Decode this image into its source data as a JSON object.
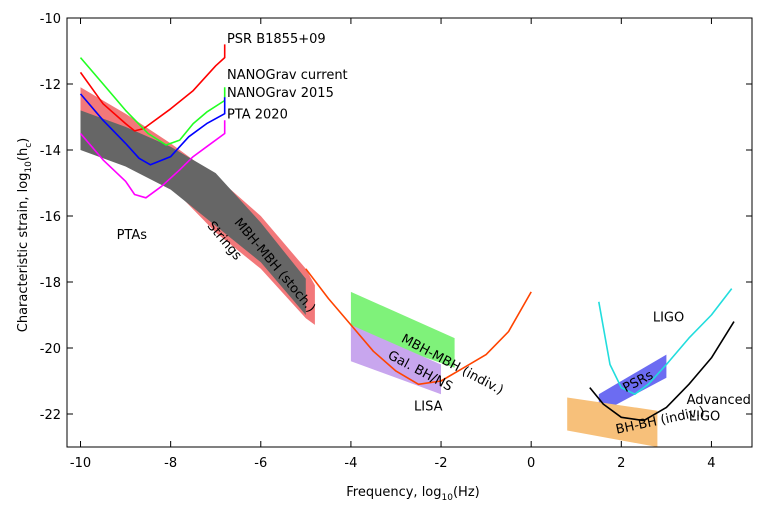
{
  "chart_data": {
    "type": "line",
    "title": "",
    "xlabel": "Frequency, log",
    "xlabel_sub": "10",
    "xlabel_tail": "(Hz)",
    "ylabel": "Characteristic strain, log",
    "ylabel_sub": "10",
    "ylabel_tail": "(h",
    "ylabel_sub2": "c",
    "ylabel_end": ")",
    "xlim": [
      -10.3,
      4.9
    ],
    "ylim": [
      -23.0,
      -10.0
    ],
    "xticks": [
      -10,
      -8,
      -6,
      -4,
      -2,
      0,
      2,
      4
    ],
    "yticks": [
      -10,
      -12,
      -14,
      -16,
      -18,
      -20,
      -22
    ],
    "regions": [
      {
        "name": "Strings",
        "label": "Strings",
        "color": "#f2787a",
        "polygon": [
          [
            -10,
            -12.1
          ],
          [
            -9,
            -12.9
          ],
          [
            -8,
            -13.8
          ],
          [
            -7,
            -14.8
          ],
          [
            -6,
            -16.0
          ],
          [
            -5,
            -17.6
          ],
          [
            -4.8,
            -18.1
          ],
          [
            -4.8,
            -19.3
          ],
          [
            -5,
            -19.1
          ],
          [
            -6,
            -17.6
          ],
          [
            -7,
            -16.5
          ],
          [
            -8,
            -15.1
          ],
          [
            -9,
            -14.2
          ],
          [
            -10,
            -13.4
          ]
        ]
      },
      {
        "name": "MBH-MBH (stoch.)",
        "label": "MBH-MBH (stoch.)",
        "color": "#666666",
        "polygon": [
          [
            -10,
            -12.8
          ],
          [
            -9,
            -13.3
          ],
          [
            -8,
            -13.9
          ],
          [
            -7,
            -14.7
          ],
          [
            -6,
            -16.2
          ],
          [
            -5,
            -17.9
          ],
          [
            -5,
            -19.0
          ],
          [
            -6,
            -17.4
          ],
          [
            -7,
            -16.3
          ],
          [
            -8,
            -15.2
          ],
          [
            -9,
            -14.5
          ],
          [
            -10,
            -14.0
          ]
        ]
      },
      {
        "name": "MBH-MBH (indiv.)",
        "label": "MBH-MBH (indiv.)",
        "color": "#7ff27a",
        "polygon": [
          [
            -4,
            -18.3
          ],
          [
            -1.7,
            -19.7
          ],
          [
            -1.7,
            -20.6
          ],
          [
            -4,
            -19.5
          ]
        ]
      },
      {
        "name": "Gal. BH/NS",
        "label": "Gal. BH/NS",
        "color": "#c8a6ee",
        "polygon": [
          [
            -4,
            -19.3
          ],
          [
            -2,
            -20.5
          ],
          [
            -2,
            -21.4
          ],
          [
            -4,
            -20.4
          ]
        ]
      },
      {
        "name": "PSRs",
        "label": "PSRs",
        "color": "#6c6cf2",
        "polygon": [
          [
            1.5,
            -21.4
          ],
          [
            3,
            -20.2
          ],
          [
            3,
            -20.9
          ],
          [
            1.5,
            -22.0
          ]
        ]
      },
      {
        "name": "BH-BH (indiv.)",
        "label": "BH-BH (indiv.)",
        "color": "#f7c07a",
        "polygon": [
          [
            0.8,
            -21.5
          ],
          [
            2.8,
            -21.9
          ],
          [
            2.8,
            -23.0
          ],
          [
            0.8,
            -22.5
          ]
        ]
      }
    ],
    "series": [
      {
        "name": "PSR B1855+09",
        "color": "#ff0000",
        "points": [
          [
            -10,
            -11.65
          ],
          [
            -9.5,
            -12.6
          ],
          [
            -9,
            -13.2
          ],
          [
            -8.8,
            -13.42
          ],
          [
            -8.6,
            -13.35
          ],
          [
            -8,
            -12.75
          ],
          [
            -7.5,
            -12.2
          ],
          [
            -7.0,
            -11.45
          ],
          [
            -6.8,
            -11.2
          ],
          [
            -6.8,
            -10.8
          ]
        ]
      },
      {
        "name": "NANOGrav current",
        "color": "#22ff22",
        "points": [
          [
            -10,
            -11.2
          ],
          [
            -9.5,
            -12.0
          ],
          [
            -9,
            -12.8
          ],
          [
            -8.5,
            -13.5
          ],
          [
            -8.1,
            -13.85
          ],
          [
            -7.8,
            -13.7
          ],
          [
            -7.5,
            -13.2
          ],
          [
            -7.2,
            -12.85
          ],
          [
            -6.8,
            -12.5
          ],
          [
            -6.8,
            -12.1
          ]
        ]
      },
      {
        "name": "NANOGrav 2015",
        "color": "#0000ff",
        "points": [
          [
            -10,
            -12.3
          ],
          [
            -9.5,
            -13.1
          ],
          [
            -9,
            -13.8
          ],
          [
            -8.7,
            -14.25
          ],
          [
            -8.45,
            -14.45
          ],
          [
            -8.0,
            -14.2
          ],
          [
            -7.6,
            -13.6
          ],
          [
            -7.2,
            -13.2
          ],
          [
            -6.8,
            -12.9
          ],
          [
            -6.8,
            -12.4
          ]
        ]
      },
      {
        "name": "PTA 2020",
        "color": "#ff00ff",
        "points": [
          [
            -10,
            -13.5
          ],
          [
            -9.5,
            -14.3
          ],
          [
            -9,
            -14.95
          ],
          [
            -8.8,
            -15.35
          ],
          [
            -8.55,
            -15.45
          ],
          [
            -8.2,
            -15.1
          ],
          [
            -7.8,
            -14.6
          ],
          [
            -7.5,
            -14.2
          ],
          [
            -7.2,
            -13.9
          ],
          [
            -6.8,
            -13.5
          ],
          [
            -6.8,
            -13.1
          ]
        ]
      },
      {
        "name": "LISA",
        "color": "#ff4400",
        "points": [
          [
            -5,
            -17.6
          ],
          [
            -4.5,
            -18.5
          ],
          [
            -4,
            -19.3
          ],
          [
            -3.5,
            -20.1
          ],
          [
            -3,
            -20.7
          ],
          [
            -2.5,
            -21.1
          ],
          [
            -2,
            -21.0
          ],
          [
            -1.5,
            -20.6
          ],
          [
            -1.0,
            -20.2
          ],
          [
            -0.5,
            -19.5
          ],
          [
            0,
            -18.3
          ]
        ]
      },
      {
        "name": "LIGO",
        "color": "#22dddd",
        "points": [
          [
            1.5,
            -18.6
          ],
          [
            1.75,
            -20.5
          ],
          [
            2.0,
            -21.2
          ],
          [
            2.3,
            -21.4
          ],
          [
            2.6,
            -21.1
          ],
          [
            3.0,
            -20.5
          ],
          [
            3.5,
            -19.7
          ],
          [
            4.0,
            -19.0
          ],
          [
            4.45,
            -18.2
          ]
        ]
      },
      {
        "name": "Advanced LIGO",
        "color": "#000000",
        "points": [
          [
            1.3,
            -21.2
          ],
          [
            1.6,
            -21.7
          ],
          [
            2.0,
            -22.1
          ],
          [
            2.5,
            -22.2
          ],
          [
            3.0,
            -21.8
          ],
          [
            3.5,
            -21.1
          ],
          [
            4.0,
            -20.3
          ],
          [
            4.5,
            -19.2
          ]
        ]
      }
    ],
    "annotations": [
      {
        "text": "PSR B1855+09",
        "x": -6.75,
        "y": -10.75,
        "rotation": 0
      },
      {
        "text": "NANOGrav current",
        "x": -6.75,
        "y": -11.85,
        "rotation": 0
      },
      {
        "text": "NANOGrav 2015",
        "x": -6.75,
        "y": -12.4,
        "rotation": 0
      },
      {
        "text": "PTA 2020",
        "x": -6.75,
        "y": -13.05,
        "rotation": 0
      },
      {
        "text": "PTAs",
        "x": -9.2,
        "y": -16.7,
        "rotation": 0
      },
      {
        "text": "Strings",
        "x": -7.2,
        "y": -16.3,
        "rotation": 50
      },
      {
        "text": "MBH-MBH (stoch.)",
        "x": -6.6,
        "y": -16.2,
        "rotation": 50
      },
      {
        "text": "MBH-MBH (indiv.)",
        "x": -2.9,
        "y": -19.8,
        "rotation": 28
      },
      {
        "text": "Gal. BH/NS",
        "x": -3.2,
        "y": -20.3,
        "rotation": 28
      },
      {
        "text": "LISA",
        "x": -2.6,
        "y": -21.9,
        "rotation": 0
      },
      {
        "text": "LIGO",
        "x": 2.7,
        "y": -19.2,
        "rotation": 0
      },
      {
        "text": "PSRs",
        "x": 2.1,
        "y": -21.35,
        "rotation": -28
      },
      {
        "text": "Advanced",
        "x": 3.45,
        "y": -21.7,
        "rotation": 0
      },
      {
        "text": "LIGO",
        "x": 3.5,
        "y": -22.2,
        "rotation": 0
      },
      {
        "text": "BH-BH (indiv.)",
        "x": 1.9,
        "y": -22.6,
        "rotation": -12
      }
    ]
  }
}
